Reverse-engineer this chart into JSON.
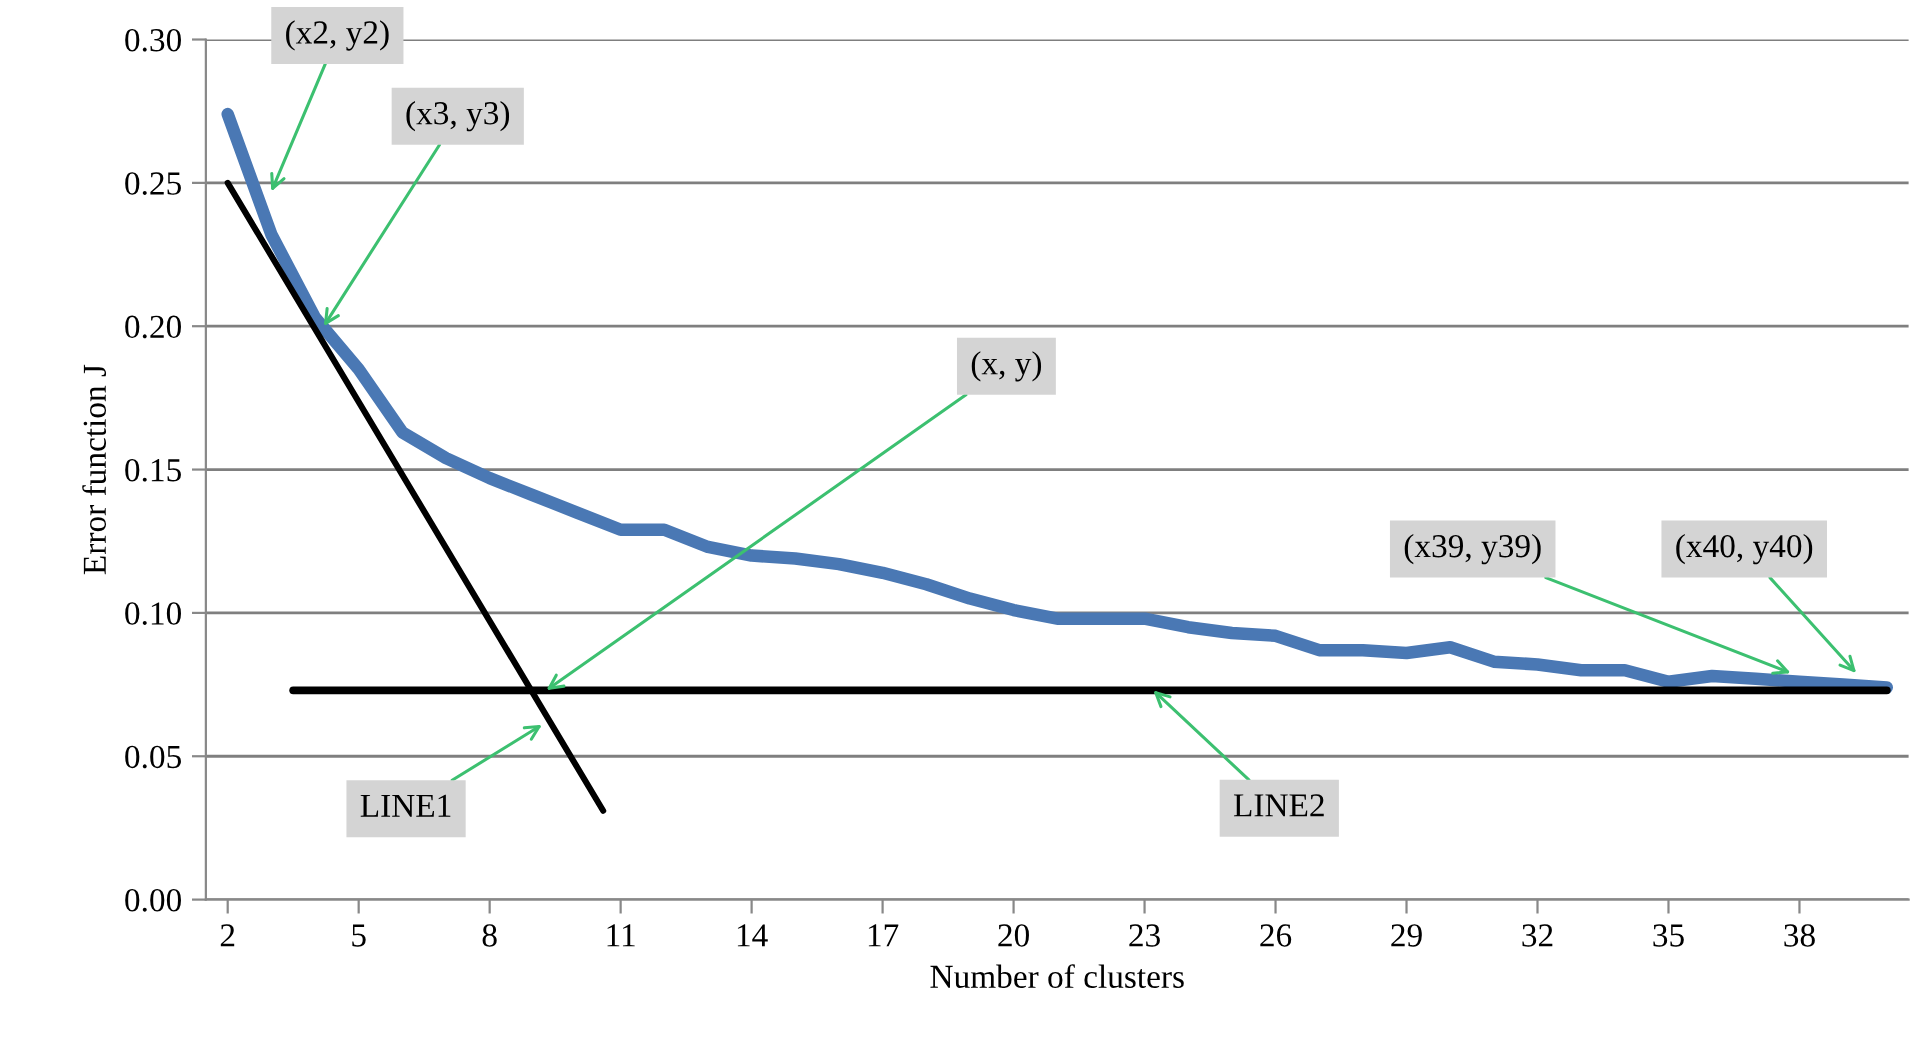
{
  "chart_data": {
    "type": "line",
    "xlabel": "Number of clusters",
    "ylabel": "Error function J",
    "series": [
      {
        "color": "#4a78b4",
        "x": [
          2,
          3,
          4,
          5,
          6,
          7,
          8,
          9,
          10,
          11,
          12,
          13,
          14,
          15,
          16,
          17,
          18,
          19,
          20,
          21,
          22,
          23,
          24,
          25,
          26,
          27,
          28,
          29,
          30,
          31,
          32,
          33,
          34,
          35,
          36,
          37,
          38,
          39,
          40
        ],
        "values": [
          0.274,
          0.232,
          0.203,
          0.185,
          0.163,
          0.154,
          0.147,
          0.141,
          0.135,
          0.129,
          0.129,
          0.123,
          0.12,
          0.119,
          0.117,
          0.114,
          0.11,
          0.105,
          0.101,
          0.098,
          0.098,
          0.098,
          0.095,
          0.093,
          0.092,
          0.087,
          0.087,
          0.086,
          0.088,
          0.083,
          0.082,
          0.08,
          0.08,
          0.076,
          0.078,
          0.077,
          0.076,
          0.075,
          0.074
        ]
      },
      {
        "color": "#000000",
        "x": [
          2,
          10.6
        ],
        "values": [
          0.25,
          0.031
        ]
      },
      {
        "color": "#000000",
        "x": [
          3.5,
          40
        ],
        "values": [
          0.073,
          0.073
        ]
      }
    ],
    "xlim": [
      1.5,
      40.5
    ],
    "xticks": [
      2,
      5,
      8,
      11,
      14,
      17,
      20,
      23,
      26,
      29,
      32,
      35,
      38
    ],
    "ylim": [
      0,
      0.3
    ],
    "yticks": [
      {
        "value": 0,
        "label": "0.00"
      },
      {
        "value": 0.05,
        "label": "0.05"
      },
      {
        "value": 0.1,
        "label": "0.10"
      },
      {
        "value": 0.15,
        "label": "0.15"
      },
      {
        "value": 0.2,
        "label": "0.20"
      },
      {
        "value": 0.25,
        "label": "0.25"
      },
      {
        "value": 0.3,
        "label": "0.30"
      }
    ],
    "grid": "y",
    "marker": "none",
    "line_style": "solid",
    "annotations": [
      {
        "text": "(x2, y2)",
        "x": 3,
        "y": 0.247
      },
      {
        "text": "(x3, y3)",
        "x": 4.2,
        "y": 0.2
      },
      {
        "text": "(x, y)",
        "x": 9.3,
        "y": 0.073
      },
      {
        "text": "LINE1",
        "x": 9.2,
        "y": 0.061
      },
      {
        "text": "LINE2",
        "x": 23.2,
        "y": 0.073
      },
      {
        "text": "(x39, y39)",
        "x": 37.8,
        "y": 0.079
      },
      {
        "text": "(x40, y40)",
        "x": 39.3,
        "y": 0.079
      }
    ]
  }
}
